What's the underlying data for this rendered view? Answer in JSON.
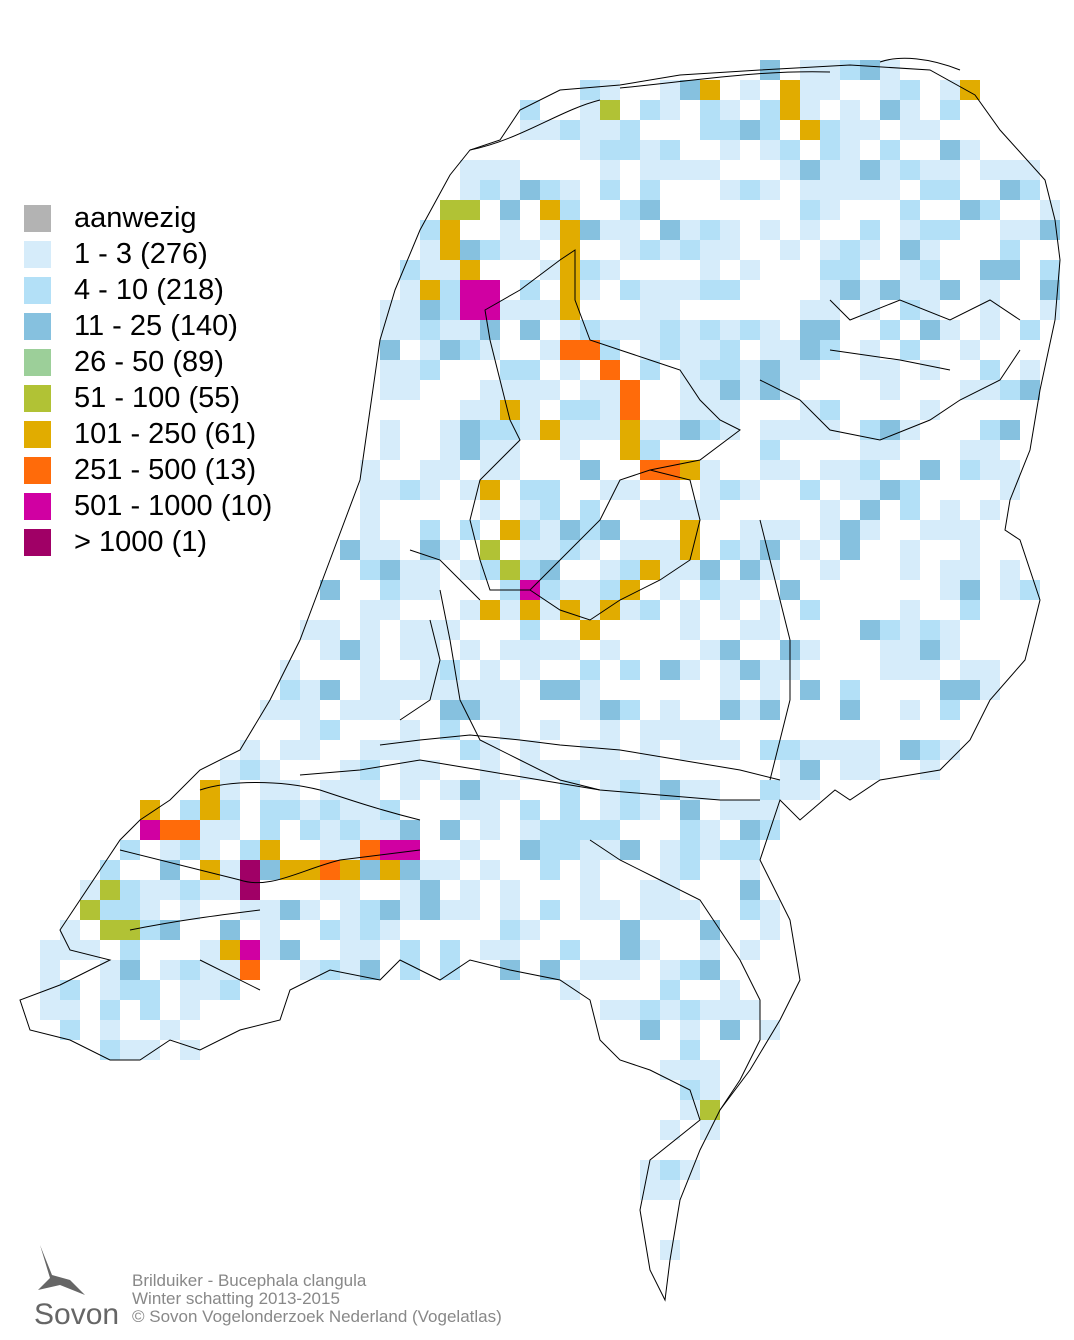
{
  "legend": {
    "items": [
      {
        "label": "aanwezig",
        "color": "#b3b3b3"
      },
      {
        "label": "1 - 3 (276)",
        "color": "#d6ecfa"
      },
      {
        "label": "4 - 10 (218)",
        "color": "#b3e0f7"
      },
      {
        "label": "11 - 25 (140)",
        "color": "#86c1df"
      },
      {
        "label": "26 - 50 (89)",
        "color": "#9ccf99"
      },
      {
        "label": "51 - 100 (55)",
        "color": "#b1c235"
      },
      {
        "label": "101 - 250 (61)",
        "color": "#e1ac00"
      },
      {
        "label": "251 - 500 (13)",
        "color": "#ff6b0a"
      },
      {
        "label": "501 - 1000 (10)",
        "color": "#d000a2"
      },
      {
        "label": "> 1000 (1)",
        "color": "#a00066"
      }
    ]
  },
  "credits": {
    "line1": "Brilduiker - Bucephala clangula",
    "line2": "Winter schatting 2013-2015",
    "line3": "© Sovon Vogelonderzoek Nederland (Vogelatlas)"
  },
  "logo": {
    "text": "Sovon"
  }
}
